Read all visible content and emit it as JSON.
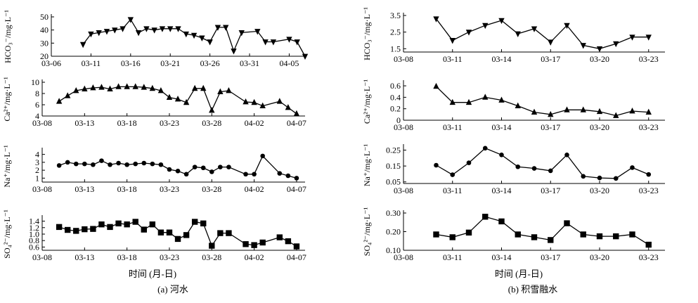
{
  "figure": {
    "left_caption": "(a) 河水",
    "right_caption": "(b) 积雪融水",
    "xlabel": "时间 (月-日)"
  },
  "chart_data": [
    {
      "type": "line",
      "panel": "a1",
      "marker": "triangle-down",
      "ylabel": "HCO₃⁻/mg·L⁻¹",
      "ylim": [
        20,
        50
      ],
      "yticks": [
        20,
        30,
        40,
        50
      ],
      "xlim": [
        "03-06",
        "04-07"
      ],
      "xticks": [
        "03-06",
        "03-11",
        "03-16",
        "03-21",
        "03-26",
        "03-31",
        "04-05"
      ],
      "x": [
        "03-10",
        "03-11",
        "03-12",
        "03-13",
        "03-14",
        "03-15",
        "03-16",
        "03-17",
        "03-18",
        "03-19",
        "03-20",
        "03-21",
        "03-22",
        "03-23",
        "03-24",
        "03-25",
        "03-26",
        "03-27",
        "03-28",
        "03-29",
        "03-30",
        "04-01",
        "04-02",
        "04-03",
        "04-05",
        "04-06",
        "04-07"
      ],
      "y": [
        29,
        37,
        38,
        39,
        40,
        41,
        48,
        38,
        41,
        40,
        41,
        41,
        41,
        37,
        36,
        34,
        31,
        42,
        42,
        24,
        38,
        39,
        31,
        31,
        33,
        31,
        20
      ]
    },
    {
      "type": "line",
      "panel": "a2",
      "marker": "triangle-up",
      "ylabel": "Ca²⁺/mg·L⁻¹",
      "ylim": [
        4,
        10
      ],
      "yticks": [
        4,
        6,
        8,
        10
      ],
      "xlim": [
        "03-08",
        "04-08"
      ],
      "xticks": [
        "03-08",
        "03-13",
        "03-18",
        "03-23",
        "03-28",
        "04-02",
        "04-07"
      ],
      "x": [
        "03-10",
        "03-11",
        "03-12",
        "03-13",
        "03-14",
        "03-15",
        "03-16",
        "03-17",
        "03-18",
        "03-19",
        "03-20",
        "03-21",
        "03-22",
        "03-23",
        "03-24",
        "03-25",
        "03-26",
        "03-27",
        "03-28",
        "03-29",
        "03-30",
        "04-01",
        "04-02",
        "04-03",
        "04-05",
        "04-06",
        "04-07"
      ],
      "y": [
        6.6,
        7.6,
        8.5,
        8.8,
        9.0,
        9.1,
        8.8,
        9.2,
        9.2,
        9.2,
        9.1,
        8.9,
        8.5,
        7.3,
        7.0,
        6.4,
        8.9,
        8.9,
        5.0,
        8.3,
        8.5,
        6.5,
        6.4,
        5.8,
        6.6,
        5.5,
        4.4
      ]
    },
    {
      "type": "line",
      "panel": "a3",
      "marker": "circle",
      "ylabel": "Na⁺/mg·L⁻¹",
      "ylim": [
        0.5,
        4.5
      ],
      "yticks": [
        1,
        2,
        3,
        4
      ],
      "xlim": [
        "03-08",
        "04-08"
      ],
      "xticks": [
        "03-08",
        "03-13",
        "03-18",
        "03-23",
        "03-28",
        "04-02",
        "04-07"
      ],
      "x": [
        "03-10",
        "03-11",
        "03-12",
        "03-13",
        "03-14",
        "03-15",
        "03-16",
        "03-17",
        "03-18",
        "03-19",
        "03-20",
        "03-21",
        "03-22",
        "03-23",
        "03-24",
        "03-25",
        "03-26",
        "03-27",
        "03-28",
        "03-29",
        "03-30",
        "04-01",
        "04-02",
        "04-03",
        "04-05",
        "04-06",
        "04-07"
      ],
      "y": [
        2.6,
        3.0,
        2.8,
        2.8,
        2.7,
        3.2,
        2.7,
        2.9,
        2.7,
        2.8,
        2.9,
        2.8,
        2.7,
        2.1,
        1.9,
        1.5,
        2.4,
        2.3,
        1.8,
        2.4,
        2.4,
        1.5,
        1.5,
        3.8,
        1.6,
        1.3,
        1.0
      ]
    },
    {
      "type": "line",
      "panel": "a4",
      "marker": "square",
      "ylabel": "SO₄²⁻/mg·L⁻¹",
      "ylim": [
        0.5,
        1.5
      ],
      "yticks": [
        0.6,
        0.8,
        1.0,
        1.2,
        1.4
      ],
      "xlim": [
        "03-08",
        "04-08"
      ],
      "xticks": [
        "03-08",
        "03-13",
        "03-18",
        "03-23",
        "03-28",
        "04-02",
        "04-07"
      ],
      "x": [
        "03-10",
        "03-11",
        "03-12",
        "03-13",
        "03-14",
        "03-15",
        "03-16",
        "03-17",
        "03-18",
        "03-19",
        "03-20",
        "03-21",
        "03-22",
        "03-23",
        "03-24",
        "03-25",
        "03-26",
        "03-27",
        "03-28",
        "03-29",
        "03-30",
        "04-01",
        "04-02",
        "04-03",
        "04-05",
        "04-06",
        "04-07"
      ],
      "y": [
        1.22,
        1.13,
        1.1,
        1.15,
        1.16,
        1.3,
        1.22,
        1.33,
        1.3,
        1.38,
        1.14,
        1.3,
        1.05,
        1.05,
        0.85,
        0.97,
        1.38,
        1.33,
        0.64,
        1.03,
        1.03,
        0.69,
        0.66,
        0.74,
        0.9,
        0.78,
        0.62
      ]
    },
    {
      "type": "line",
      "panel": "b1",
      "marker": "triangle-down",
      "ylabel": "HCO₃⁻/mg·L⁻¹",
      "ylim": [
        1.3,
        3.5
      ],
      "yticks": [
        1.5,
        2.5,
        3.5
      ],
      "xlim": [
        "03-08",
        "03-24"
      ],
      "xticks": [
        "03-08",
        "03-11",
        "03-14",
        "03-17",
        "03-20",
        "03-23"
      ],
      "x": [
        "03-10",
        "03-11",
        "03-12",
        "03-13",
        "03-14",
        "03-15",
        "03-16",
        "03-17",
        "03-18",
        "03-19",
        "03-20",
        "03-21",
        "03-22",
        "03-23"
      ],
      "y": [
        3.3,
        2.0,
        2.5,
        2.9,
        3.2,
        2.4,
        2.7,
        1.9,
        2.9,
        1.7,
        1.5,
        1.8,
        2.2,
        2.2
      ]
    },
    {
      "type": "line",
      "panel": "b2",
      "marker": "triangle-up",
      "ylabel": "Ca²⁺/mg·L⁻¹",
      "ylim": [
        0,
        0.65
      ],
      "yticks": [
        0,
        0.2,
        0.4,
        0.6
      ],
      "xlim": [
        "03-08",
        "03-24"
      ],
      "xticks": [
        "03-08",
        "03-11",
        "03-14",
        "03-17",
        "03-20",
        "03-23"
      ],
      "x": [
        "03-10",
        "03-11",
        "03-12",
        "03-13",
        "03-14",
        "03-15",
        "03-16",
        "03-17",
        "03-18",
        "03-19",
        "03-20",
        "03-21",
        "03-22",
        "03-23"
      ],
      "y": [
        0.59,
        0.31,
        0.31,
        0.4,
        0.35,
        0.25,
        0.14,
        0.1,
        0.18,
        0.18,
        0.15,
        0.08,
        0.16,
        0.14
      ]
    },
    {
      "type": "line",
      "panel": "b3",
      "marker": "circle",
      "ylabel": "Na⁺/mg·L⁻¹",
      "ylim": [
        0.04,
        0.27
      ],
      "yticks": [
        0.05,
        0.15,
        0.25
      ],
      "xlim": [
        "03-08",
        "03-24"
      ],
      "xticks": [
        "03-08",
        "03-11",
        "03-14",
        "03-17",
        "03-20",
        "03-23"
      ],
      "x": [
        "03-10",
        "03-11",
        "03-12",
        "03-13",
        "03-14",
        "03-15",
        "03-16",
        "03-17",
        "03-18",
        "03-19",
        "03-20",
        "03-21",
        "03-22",
        "03-23"
      ],
      "y": [
        0.155,
        0.095,
        0.17,
        0.262,
        0.22,
        0.145,
        0.135,
        0.12,
        0.22,
        0.085,
        0.075,
        0.072,
        0.14,
        0.097
      ]
    },
    {
      "type": "line",
      "panel": "b4",
      "marker": "square",
      "ylabel": "SO₄²⁻/mg·L⁻¹",
      "ylim": [
        0.1,
        0.3
      ],
      "yticks": [
        0.1,
        0.2,
        0.3
      ],
      "xlim": [
        "03-08",
        "03-24"
      ],
      "xticks": [
        "03-08",
        "03-11",
        "03-14",
        "03-17",
        "03-20",
        "03-23"
      ],
      "x": [
        "03-10",
        "03-11",
        "03-12",
        "03-13",
        "03-14",
        "03-15",
        "03-16",
        "03-17",
        "03-18",
        "03-19",
        "03-20",
        "03-21",
        "03-22",
        "03-23"
      ],
      "y": [
        0.185,
        0.17,
        0.195,
        0.28,
        0.255,
        0.185,
        0.17,
        0.155,
        0.245,
        0.185,
        0.175,
        0.175,
        0.185,
        0.13
      ]
    }
  ]
}
